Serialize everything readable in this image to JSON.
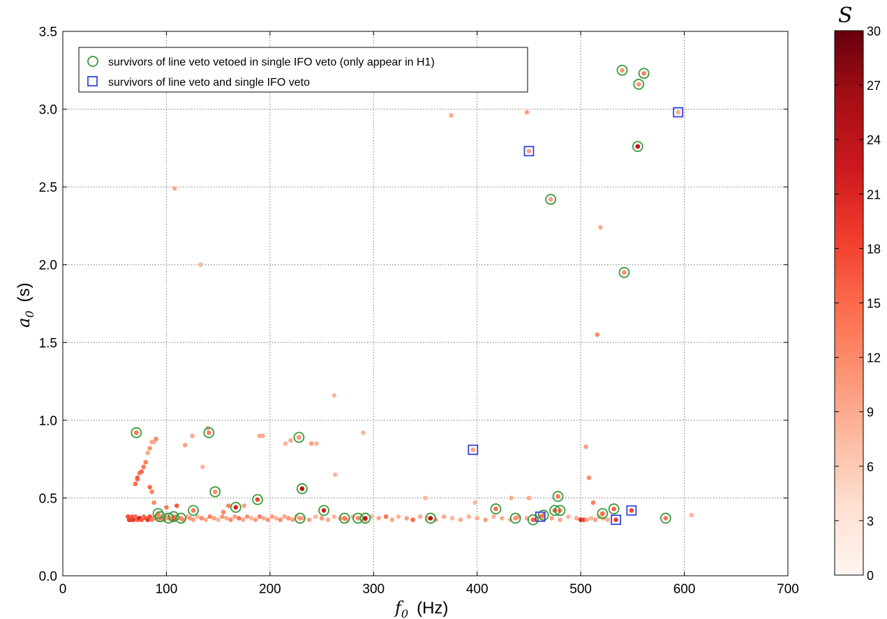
{
  "chart_data": {
    "type": "scatter",
    "xlabel_symbol": "f",
    "xlabel_sub": "0",
    "xlabel_unit": "(Hz)",
    "ylabel_symbol": "a",
    "ylabel_sub": "0",
    "ylabel_unit": "(s)",
    "xlim": [
      0,
      700
    ],
    "ylim": [
      0.0,
      3.5
    ],
    "xticks": [
      0,
      100,
      200,
      300,
      400,
      500,
      600,
      700
    ],
    "xtick_labels": [
      "0",
      "100",
      "200",
      "300",
      "400",
      "500",
      "600",
      "700"
    ],
    "yticks": [
      0.0,
      0.5,
      1.0,
      1.5,
      2.0,
      2.5,
      3.0,
      3.5
    ],
    "ytick_labels": [
      "0.0",
      "0.5",
      "1.0",
      "1.5",
      "2.0",
      "2.5",
      "3.0",
      "3.5"
    ],
    "grid": true,
    "legend_position": "top-left",
    "colorbar": {
      "label": "S",
      "range": [
        0,
        30
      ],
      "ticks": [
        0,
        3,
        6,
        9,
        12,
        15,
        18,
        21,
        24,
        27,
        30
      ],
      "tick_labels": [
        "0",
        "3",
        "6",
        "9",
        "12",
        "15",
        "18",
        "21",
        "24",
        "27",
        "30"
      ],
      "colormap": "Reds"
    },
    "legend": [
      {
        "label": "survivors of line veto vetoed in single IFO veto (only appear in H1)",
        "marker": "circle",
        "color": "#3a9a3a"
      },
      {
        "label": "survivors of line veto and single IFO veto",
        "marker": "square",
        "color": "#3344dd"
      }
    ],
    "points": [
      [
        63,
        0.38,
        17
      ],
      [
        64,
        0.36,
        18
      ],
      [
        65,
        0.37,
        17
      ],
      [
        66,
        0.36,
        19
      ],
      [
        67,
        0.38,
        16
      ],
      [
        68,
        0.36,
        18
      ],
      [
        69,
        0.37,
        20
      ],
      [
        70,
        0.38,
        15
      ],
      [
        72,
        0.36,
        16
      ],
      [
        74,
        0.37,
        22
      ],
      [
        76,
        0.36,
        17
      ],
      [
        78,
        0.38,
        14
      ],
      [
        80,
        0.37,
        16
      ],
      [
        82,
        0.36,
        19
      ],
      [
        84,
        0.38,
        17
      ],
      [
        86,
        0.36,
        13
      ],
      [
        88,
        0.37,
        12
      ],
      [
        90,
        0.38,
        10
      ],
      [
        92,
        0.36,
        9
      ],
      [
        95,
        0.37,
        14
      ],
      [
        98,
        0.36,
        11
      ],
      [
        101,
        0.38,
        9
      ],
      [
        104,
        0.37,
        13
      ],
      [
        107,
        0.36,
        16
      ],
      [
        110,
        0.38,
        10
      ],
      [
        113,
        0.37,
        8
      ],
      [
        116,
        0.36,
        12
      ],
      [
        120,
        0.38,
        9
      ],
      [
        123,
        0.37,
        11
      ],
      [
        126,
        0.36,
        10
      ],
      [
        130,
        0.38,
        8
      ],
      [
        134,
        0.37,
        12
      ],
      [
        138,
        0.36,
        9
      ],
      [
        142,
        0.38,
        13
      ],
      [
        146,
        0.37,
        10
      ],
      [
        150,
        0.36,
        8
      ],
      [
        154,
        0.38,
        11
      ],
      [
        158,
        0.37,
        9
      ],
      [
        162,
        0.36,
        12
      ],
      [
        166,
        0.38,
        10
      ],
      [
        170,
        0.37,
        14
      ],
      [
        174,
        0.36,
        9
      ],
      [
        178,
        0.38,
        11
      ],
      [
        182,
        0.37,
        8
      ],
      [
        186,
        0.36,
        10
      ],
      [
        190,
        0.38,
        13
      ],
      [
        194,
        0.37,
        9
      ],
      [
        198,
        0.36,
        11
      ],
      [
        202,
        0.38,
        10
      ],
      [
        206,
        0.37,
        8
      ],
      [
        210,
        0.36,
        12
      ],
      [
        214,
        0.38,
        9
      ],
      [
        218,
        0.37,
        11
      ],
      [
        222,
        0.36,
        10
      ],
      [
        226,
        0.38,
        8
      ],
      [
        232,
        0.37,
        9
      ],
      [
        238,
        0.36,
        10
      ],
      [
        244,
        0.38,
        8
      ],
      [
        250,
        0.37,
        11
      ],
      [
        256,
        0.36,
        9
      ],
      [
        262,
        0.38,
        8
      ],
      [
        268,
        0.37,
        10
      ],
      [
        274,
        0.36,
        9
      ],
      [
        280,
        0.38,
        8
      ],
      [
        286,
        0.37,
        9
      ],
      [
        292,
        0.36,
        11
      ],
      [
        298,
        0.38,
        8
      ],
      [
        305,
        0.37,
        9
      ],
      [
        312,
        0.38,
        14
      ],
      [
        318,
        0.36,
        9
      ],
      [
        324,
        0.38,
        8
      ],
      [
        332,
        0.37,
        10
      ],
      [
        338,
        0.36,
        15
      ],
      [
        345,
        0.38,
        9
      ],
      [
        352,
        0.37,
        8
      ],
      [
        360,
        0.36,
        10
      ],
      [
        368,
        0.38,
        9
      ],
      [
        376,
        0.37,
        8
      ],
      [
        384,
        0.36,
        9
      ],
      [
        392,
        0.38,
        8
      ],
      [
        400,
        0.37,
        9
      ],
      [
        408,
        0.36,
        10
      ],
      [
        416,
        0.38,
        8
      ],
      [
        424,
        0.37,
        9
      ],
      [
        432,
        0.36,
        8
      ],
      [
        440,
        0.38,
        10
      ],
      [
        448,
        0.37,
        9
      ],
      [
        456,
        0.36,
        8
      ],
      [
        464,
        0.38,
        9
      ],
      [
        472,
        0.37,
        10
      ],
      [
        480,
        0.36,
        9
      ],
      [
        488,
        0.38,
        8
      ],
      [
        496,
        0.37,
        9
      ],
      [
        500,
        0.36,
        20
      ],
      [
        503,
        0.36,
        18
      ],
      [
        506,
        0.36,
        9
      ],
      [
        510,
        0.37,
        8
      ],
      [
        514,
        0.36,
        10
      ],
      [
        518,
        0.38,
        9
      ],
      [
        522,
        0.37,
        8
      ],
      [
        526,
        0.36,
        9
      ],
      [
        70,
        0.59,
        15
      ],
      [
        72,
        0.62,
        14
      ],
      [
        74,
        0.66,
        13
      ],
      [
        76,
        0.67,
        15
      ],
      [
        72,
        0.63,
        16
      ],
      [
        78,
        0.7,
        14
      ],
      [
        80,
        0.73,
        13
      ],
      [
        82,
        0.79,
        9
      ],
      [
        84,
        0.82,
        11
      ],
      [
        86,
        0.86,
        10
      ],
      [
        88,
        0.86,
        9
      ],
      [
        90,
        0.88,
        12
      ],
      [
        84,
        0.57,
        15
      ],
      [
        86,
        0.54,
        13
      ],
      [
        88,
        0.47,
        12
      ],
      [
        100,
        0.44,
        14
      ],
      [
        110,
        0.45,
        16
      ],
      [
        118,
        0.84,
        10
      ],
      [
        125,
        0.9,
        9
      ],
      [
        135,
        0.7,
        8
      ],
      [
        140,
        0.95,
        8
      ],
      [
        155,
        0.41,
        12
      ],
      [
        160,
        0.45,
        13
      ],
      [
        175,
        0.45,
        10
      ],
      [
        190,
        0.9,
        9
      ],
      [
        193,
        0.9,
        9
      ],
      [
        215,
        0.85,
        8
      ],
      [
        220,
        0.87,
        9
      ],
      [
        240,
        0.85,
        10
      ],
      [
        245,
        0.85,
        8
      ],
      [
        262,
        1.16,
        8
      ],
      [
        263,
        0.65,
        8
      ],
      [
        290,
        0.92,
        8
      ],
      [
        350,
        0.5,
        8
      ],
      [
        375,
        2.96,
        9
      ],
      [
        448,
        2.98,
        10
      ],
      [
        433,
        0.5,
        9
      ],
      [
        450,
        0.5,
        9
      ],
      [
        398,
        0.47,
        8
      ],
      [
        108,
        2.49,
        9
      ],
      [
        133,
        2.0,
        8
      ],
      [
        519,
        2.24,
        9
      ],
      [
        516,
        1.55,
        12
      ],
      [
        505,
        0.83,
        10
      ],
      [
        508,
        0.63,
        12
      ],
      [
        512,
        0.47,
        13
      ],
      [
        607,
        0.39,
        8
      ],
      [
        71,
        0.92,
        14
      ],
      [
        141,
        0.92,
        13
      ],
      [
        228,
        0.89,
        11
      ],
      [
        147,
        0.54,
        12
      ],
      [
        231,
        0.56,
        25
      ],
      [
        188,
        0.49,
        18
      ],
      [
        167,
        0.44,
        21
      ],
      [
        92,
        0.4,
        13
      ],
      [
        94,
        0.38,
        12
      ],
      [
        102,
        0.37,
        11
      ],
      [
        107,
        0.38,
        13
      ],
      [
        114,
        0.37,
        12
      ],
      [
        126,
        0.42,
        14
      ],
      [
        229,
        0.37,
        11
      ],
      [
        252,
        0.42,
        22
      ],
      [
        272,
        0.37,
        14
      ],
      [
        285,
        0.37,
        12
      ],
      [
        292,
        0.37,
        23
      ],
      [
        355,
        0.37,
        24
      ],
      [
        418,
        0.43,
        15
      ],
      [
        437,
        0.37,
        12
      ],
      [
        454,
        0.36,
        16
      ],
      [
        464,
        0.39,
        14
      ],
      [
        471,
        2.42,
        10
      ],
      [
        475,
        0.42,
        17
      ],
      [
        478,
        0.51,
        14
      ],
      [
        480,
        0.42,
        13
      ],
      [
        521,
        0.4,
        15
      ],
      [
        532,
        0.43,
        16
      ],
      [
        540,
        3.25,
        11
      ],
      [
        542,
        1.95,
        12
      ],
      [
        555,
        2.76,
        24
      ],
      [
        556,
        3.16,
        11
      ],
      [
        561,
        3.23,
        13
      ],
      [
        582,
        0.37,
        14
      ],
      [
        450,
        2.73,
        10
      ],
      [
        594,
        2.98,
        9
      ],
      [
        396,
        0.81,
        10
      ],
      [
        461,
        0.38,
        14
      ],
      [
        534,
        0.36,
        19
      ],
      [
        549,
        0.42,
        18
      ]
    ],
    "circled": [
      [
        71,
        0.92
      ],
      [
        141,
        0.92
      ],
      [
        228,
        0.89
      ],
      [
        147,
        0.54
      ],
      [
        231,
        0.56
      ],
      [
        188,
        0.49
      ],
      [
        167,
        0.44
      ],
      [
        92,
        0.4
      ],
      [
        94,
        0.38
      ],
      [
        102,
        0.37
      ],
      [
        107,
        0.38
      ],
      [
        114,
        0.37
      ],
      [
        126,
        0.42
      ],
      [
        229,
        0.37
      ],
      [
        252,
        0.42
      ],
      [
        272,
        0.37
      ],
      [
        285,
        0.37
      ],
      [
        292,
        0.37
      ],
      [
        355,
        0.37
      ],
      [
        418,
        0.43
      ],
      [
        437,
        0.37
      ],
      [
        454,
        0.36
      ],
      [
        464,
        0.39
      ],
      [
        471,
        2.42
      ],
      [
        475,
        0.42
      ],
      [
        478,
        0.51
      ],
      [
        480,
        0.42
      ],
      [
        521,
        0.4
      ],
      [
        532,
        0.43
      ],
      [
        540,
        3.25
      ],
      [
        542,
        1.95
      ],
      [
        555,
        2.76
      ],
      [
        556,
        3.16
      ],
      [
        561,
        3.23
      ],
      [
        582,
        0.37
      ]
    ],
    "squared": [
      [
        450,
        2.73
      ],
      [
        594,
        2.98
      ],
      [
        396,
        0.81
      ],
      [
        461,
        0.38
      ],
      [
        534,
        0.36
      ],
      [
        549,
        0.42
      ]
    ]
  }
}
